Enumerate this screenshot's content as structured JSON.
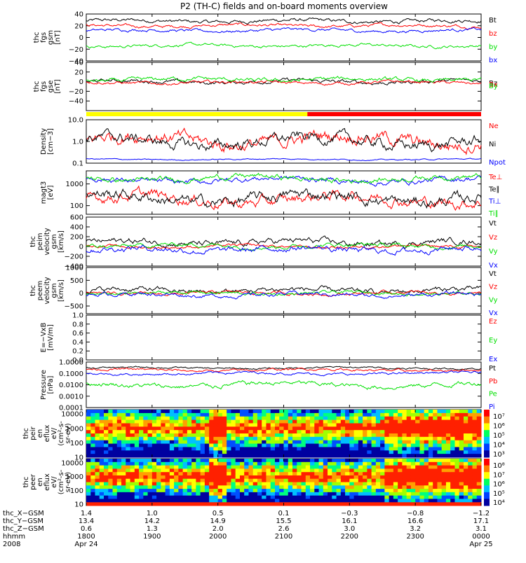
{
  "title": "P2 (TH-C) fields and on-board moments overview",
  "colors": {
    "black": "#000000",
    "red": "#ff0000",
    "blue": "#0000ff",
    "green": "#00e000",
    "yellow": "#ffff00"
  },
  "chart_data": [
    {
      "type": "line",
      "id": "fgs_gsm",
      "ylabel": [
        "thc",
        "fgs",
        "gsm",
        "[nT]"
      ],
      "ylim": [
        -40,
        40
      ],
      "ticks": [
        "40",
        "20",
        "0",
        "−20",
        "−40"
      ],
      "tick_values": [
        40,
        20,
        0,
        -20,
        -40
      ],
      "log": false,
      "series": [
        {
          "name": "Bt",
          "color": "#000000",
          "base": 28,
          "amp": 6
        },
        {
          "name": "bz",
          "color": "#ff0000",
          "base": 20,
          "amp": 5
        },
        {
          "name": "by",
          "color": "#00e000",
          "base": -14,
          "amp": 5
        },
        {
          "name": "bx",
          "color": "#0000ff",
          "base": 12,
          "amp": 5
        }
      ]
    },
    {
      "type": "line",
      "id": "fgs_gse",
      "ylabel": [
        "thc",
        "fgs",
        "gse",
        "[nT]"
      ],
      "ylim": [
        -60,
        40
      ],
      "ticks": [
        "40",
        "20",
        "0",
        "−20",
        "−40"
      ],
      "tick_values": [
        40,
        20,
        0,
        -20,
        -40
      ],
      "log": false,
      "series": [
        {
          "name": "Bz",
          "color": "#000000",
          "base": 0,
          "amp": 8
        },
        {
          "name": "Bx",
          "color": "#ff0000",
          "base": -2,
          "amp": 6
        },
        {
          "name": "By",
          "color": "#00e000",
          "base": 4,
          "amp": 8
        }
      ],
      "legend_overlap": true,
      "mode_bar": {
        "segments": [
          {
            "from": 0,
            "to": 0.56,
            "color": "#ffff00"
          },
          {
            "from": 0.56,
            "to": 1,
            "color": "#ff0000"
          }
        ]
      }
    },
    {
      "type": "line",
      "id": "density",
      "ylabel": [
        "Density",
        "[cm−3]"
      ],
      "ylim": [
        0.1,
        10
      ],
      "ticks": [
        "10.0",
        "1.0",
        "0.1"
      ],
      "tick_values": [
        10,
        1,
        0.1
      ],
      "log": true,
      "series": [
        {
          "name": "Ne",
          "color": "#ff0000",
          "base": 1.2,
          "amp": 1.2
        },
        {
          "name": "Ni",
          "color": "#000000",
          "base": 1.0,
          "amp": 1.0
        },
        {
          "name": "Npot",
          "color": "#0000ff",
          "base": 0.15,
          "amp": 0.1
        }
      ]
    },
    {
      "type": "line",
      "id": "temp",
      "ylabel": [
        "magt3",
        "[eV]"
      ],
      "ylim": [
        40,
        4000
      ],
      "ticks": [
        "1000",
        "100"
      ],
      "tick_values": [
        1000,
        100
      ],
      "log": true,
      "series": [
        {
          "name": "Te⊥",
          "color": "#ff0000",
          "base": 200,
          "amp": 1
        },
        {
          "name": "Te∥",
          "color": "#000000",
          "base": 220,
          "amp": 1
        },
        {
          "name": "Ti⊥",
          "color": "#0000ff",
          "base": 1500,
          "amp": 0.5
        },
        {
          "name": "Ti∥",
          "color": "#00e000",
          "base": 1800,
          "amp": 0.5
        }
      ]
    },
    {
      "type": "line",
      "id": "peim_vel",
      "ylabel": [
        "thc",
        "peim",
        "velocity",
        "gsm",
        "[km/s]"
      ],
      "ylim": [
        -400,
        600
      ],
      "ticks": [
        "600",
        "400",
        "200",
        "0",
        "−200",
        "−400"
      ],
      "tick_values": [
        600,
        400,
        200,
        0,
        -200,
        -400
      ],
      "log": false,
      "series": [
        {
          "name": "Vt",
          "color": "#000000",
          "base": 80,
          "amp": 120
        },
        {
          "name": "Vz",
          "color": "#ff0000",
          "base": 0,
          "amp": 60
        },
        {
          "name": "Vy",
          "color": "#00e000",
          "base": 20,
          "amp": 80
        },
        {
          "name": "Vx",
          "color": "#0000ff",
          "base": -60,
          "amp": 120
        }
      ]
    },
    {
      "type": "line",
      "id": "peem_vel",
      "ylabel": [
        "thc",
        "peem",
        "velocity",
        "gsm",
        "[km/s]"
      ],
      "ylim": [
        -800,
        1000
      ],
      "ticks": [
        "1000",
        "500",
        "0",
        "−500"
      ],
      "tick_values": [
        1000,
        500,
        0,
        -500
      ],
      "log": false,
      "series": [
        {
          "name": "Vt",
          "color": "#000000",
          "base": 100,
          "amp": 200
        },
        {
          "name": "Vz",
          "color": "#ff0000",
          "base": 0,
          "amp": 120
        },
        {
          "name": "Vy",
          "color": "#00e000",
          "base": 0,
          "amp": 120
        },
        {
          "name": "Vx",
          "color": "#0000ff",
          "base": -60,
          "amp": 150
        }
      ]
    },
    {
      "type": "line",
      "id": "efield",
      "ylabel": [
        "E=−VxB",
        "[mV/m]"
      ],
      "ylim": [
        0,
        1
      ],
      "ticks": [
        "1.0",
        "0.8",
        "0.6",
        "0.4",
        "0.2",
        "0.0"
      ],
      "tick_values": [
        1,
        0.8,
        0.6,
        0.4,
        0.2,
        0
      ],
      "log": false,
      "series": [
        {
          "name": "Ez",
          "color": "#ff0000"
        },
        {
          "name": "Ey",
          "color": "#00e000"
        },
        {
          "name": "Ex",
          "color": "#0000ff"
        }
      ],
      "empty": true
    },
    {
      "type": "line",
      "id": "pressure",
      "ylabel": [
        "Pressure",
        "[nPa]"
      ],
      "ylim": [
        0.0001,
        1
      ],
      "ticks": [
        "1.0000",
        "0.1000",
        "0.0100",
        "0.0010",
        "0.0001"
      ],
      "tick_values": [
        1,
        0.1,
        0.01,
        0.001,
        0.0001
      ],
      "log": true,
      "series": [
        {
          "name": "Pt",
          "color": "#000000",
          "base": 0.3,
          "amp": 0.3
        },
        {
          "name": "Pb",
          "color": "#ff0000",
          "base": 0.2,
          "amp": 0.4
        },
        {
          "name": "Pe",
          "color": "#00e000",
          "base": 0.01,
          "amp": 0.8
        },
        {
          "name": "Pi",
          "color": "#0000ff",
          "base": 0.1,
          "amp": 0.4
        }
      ]
    },
    {
      "type": "heatmap",
      "id": "peir",
      "ylabel": [
        "thc",
        "peir",
        "en",
        "eflux",
        "eV/",
        "(cm²-s-",
        "sr-eV)"
      ],
      "ylim": [
        10,
        20000
      ],
      "ticks": [
        "10000",
        "1000",
        "100",
        "10"
      ],
      "tick_values": [
        10000,
        1000,
        100,
        10
      ],
      "log": true,
      "colorbar": {
        "labels": [
          "10⁷",
          "10⁶",
          "10⁵",
          "10⁴",
          "10³"
        ]
      }
    },
    {
      "type": "heatmap",
      "id": "peer",
      "ylabel": [
        "thc",
        "peer",
        "en",
        "eflux",
        "eV/",
        "(cm²-s-",
        "sr-eV)"
      ],
      "ylim": [
        8,
        20000
      ],
      "ticks": [
        "10000",
        "1000",
        "100",
        "10"
      ],
      "tick_values": [
        10000,
        1000,
        100,
        10
      ],
      "log": true,
      "colorbar": {
        "labels": [
          "10⁸",
          "10⁷",
          "10⁶",
          "10⁵",
          "10⁴"
        ]
      }
    }
  ],
  "ephemeris": {
    "row_labels": [
      "thc_X−GSM",
      "thc_Y−GSM",
      "thc_Z−GSM",
      "hhmm",
      "2008"
    ],
    "columns": [
      {
        "values": [
          "1.4",
          "13.4",
          "0.6",
          "1800",
          "Apr 24"
        ]
      },
      {
        "values": [
          "1.0",
          "14.2",
          "1.3",
          "1900",
          ""
        ]
      },
      {
        "values": [
          "0.5",
          "14.9",
          "2.0",
          "2000",
          ""
        ]
      },
      {
        "values": [
          "0.1",
          "15.5",
          "2.6",
          "2100",
          ""
        ]
      },
      {
        "values": [
          "−0.3",
          "16.1",
          "3.0",
          "2200",
          ""
        ]
      },
      {
        "values": [
          "−0.8",
          "16.6",
          "3.2",
          "2300",
          ""
        ]
      },
      {
        "values": [
          "−1.2",
          "17.1",
          "3.1",
          "0000",
          "Apr 25"
        ]
      }
    ]
  }
}
